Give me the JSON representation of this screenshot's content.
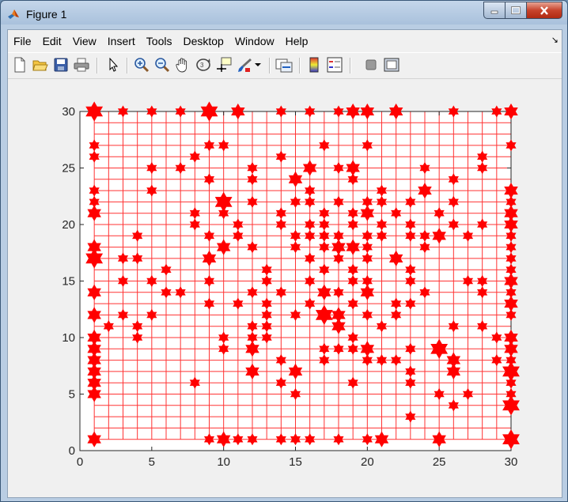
{
  "window": {
    "title": "Figure 1"
  },
  "menu": [
    "File",
    "Edit",
    "View",
    "Insert",
    "Tools",
    "Desktop",
    "Window",
    "Help"
  ],
  "toolbar": [
    "new-figure-icon",
    "open-file-icon",
    "save-icon",
    "print-icon",
    "edit-plot-arrow-icon",
    "zoom-in-icon",
    "zoom-out-icon",
    "pan-hand-icon",
    "rotate-3d-icon",
    "data-cursor-icon",
    "brush-icon",
    "link-plot-icon",
    "insert-colorbar-icon",
    "insert-legend-icon",
    "hide-plot-tools-icon",
    "show-plot-tools-icon"
  ],
  "chart_data": {
    "type": "scatter",
    "xlim": [
      0,
      30
    ],
    "ylim": [
      0,
      30
    ],
    "xticks": [
      "0",
      "5",
      "10",
      "15",
      "20",
      "25",
      "30"
    ],
    "yticks": [
      "0",
      "5",
      "10",
      "15",
      "20",
      "25",
      "30"
    ],
    "color": "#ff0000",
    "grid_color": "#ff3333",
    "grid_x": [
      1,
      2,
      3,
      4,
      5,
      6,
      7,
      8,
      9,
      10,
      11,
      12,
      13,
      14,
      15,
      16,
      17,
      18,
      19,
      20,
      21,
      22,
      23,
      24,
      25,
      26,
      27,
      28,
      29,
      30
    ],
    "grid_y": [
      1,
      2,
      3,
      4,
      5,
      6,
      7,
      8,
      9,
      10,
      11,
      12,
      13,
      14,
      15,
      16,
      17,
      18,
      19,
      20,
      21,
      22,
      23,
      24,
      25,
      26,
      27,
      28,
      29,
      30
    ],
    "marker": "hexagram",
    "points": [
      [
        1,
        30,
        3
      ],
      [
        3,
        30,
        1
      ],
      [
        5,
        30,
        1
      ],
      [
        7,
        30,
        1
      ],
      [
        9,
        30,
        3
      ],
      [
        11,
        30,
        2
      ],
      [
        14,
        30,
        1
      ],
      [
        16,
        30,
        1
      ],
      [
        18,
        30,
        1
      ],
      [
        19,
        30,
        2
      ],
      [
        20,
        30,
        2
      ],
      [
        22,
        30,
        2
      ],
      [
        26,
        30,
        1
      ],
      [
        29,
        30,
        1
      ],
      [
        30,
        30,
        2
      ],
      [
        1,
        27,
        1
      ],
      [
        9,
        27,
        1
      ],
      [
        10,
        27,
        1
      ],
      [
        17,
        27,
        1
      ],
      [
        20,
        27,
        1
      ],
      [
        30,
        27,
        1
      ],
      [
        1,
        26,
        1
      ],
      [
        8,
        26,
        1
      ],
      [
        14,
        26,
        1
      ],
      [
        28,
        26,
        1
      ],
      [
        5,
        25,
        1
      ],
      [
        7,
        25,
        1
      ],
      [
        12,
        25,
        1
      ],
      [
        16,
        25,
        2
      ],
      [
        18,
        25,
        1
      ],
      [
        19,
        25,
        2
      ],
      [
        24,
        25,
        1
      ],
      [
        28,
        25,
        1
      ],
      [
        9,
        24,
        1
      ],
      [
        12,
        24,
        1
      ],
      [
        15,
        24,
        2
      ],
      [
        19,
        24,
        1
      ],
      [
        26,
        24,
        1
      ],
      [
        1,
        23,
        1
      ],
      [
        5,
        23,
        1
      ],
      [
        16,
        23,
        1
      ],
      [
        21,
        23,
        1
      ],
      [
        24,
        23,
        2
      ],
      [
        30,
        23,
        2
      ],
      [
        1,
        22,
        1
      ],
      [
        10,
        22,
        3
      ],
      [
        12,
        22,
        1
      ],
      [
        15,
        22,
        1
      ],
      [
        16,
        22,
        1
      ],
      [
        18,
        22,
        1
      ],
      [
        20,
        22,
        1
      ],
      [
        21,
        22,
        1
      ],
      [
        23,
        22,
        1
      ],
      [
        26,
        22,
        1
      ],
      [
        30,
        22,
        1
      ],
      [
        1,
        21,
        2
      ],
      [
        8,
        21,
        1
      ],
      [
        10,
        21,
        1
      ],
      [
        14,
        21,
        1
      ],
      [
        17,
        21,
        1
      ],
      [
        19,
        21,
        1
      ],
      [
        20,
        21,
        2
      ],
      [
        22,
        21,
        1
      ],
      [
        25,
        21,
        1
      ],
      [
        30,
        21,
        2
      ],
      [
        8,
        20,
        1
      ],
      [
        11,
        20,
        1
      ],
      [
        14,
        20,
        1
      ],
      [
        16,
        20,
        1
      ],
      [
        17,
        20,
        1
      ],
      [
        19,
        20,
        1
      ],
      [
        21,
        20,
        1
      ],
      [
        23,
        20,
        1
      ],
      [
        26,
        20,
        1
      ],
      [
        28,
        20,
        1
      ],
      [
        30,
        20,
        2
      ],
      [
        4,
        19,
        1
      ],
      [
        9,
        19,
        1
      ],
      [
        11,
        19,
        1
      ],
      [
        15,
        19,
        1
      ],
      [
        16,
        19,
        1
      ],
      [
        17,
        19,
        1
      ],
      [
        18,
        19,
        1
      ],
      [
        20,
        19,
        1
      ],
      [
        21,
        19,
        1
      ],
      [
        23,
        19,
        1
      ],
      [
        24,
        19,
        1
      ],
      [
        25,
        19,
        2
      ],
      [
        27,
        19,
        1
      ],
      [
        30,
        19,
        1
      ],
      [
        1,
        18,
        2
      ],
      [
        10,
        18,
        2
      ],
      [
        12,
        18,
        1
      ],
      [
        15,
        18,
        1
      ],
      [
        17,
        18,
        1
      ],
      [
        18,
        18,
        2
      ],
      [
        19,
        18,
        2
      ],
      [
        20,
        18,
        1
      ],
      [
        24,
        18,
        1
      ],
      [
        30,
        18,
        1
      ],
      [
        1,
        17,
        3
      ],
      [
        3,
        17,
        1
      ],
      [
        4,
        17,
        1
      ],
      [
        9,
        17,
        2
      ],
      [
        16,
        17,
        1
      ],
      [
        18,
        17,
        1
      ],
      [
        20,
        17,
        1
      ],
      [
        22,
        17,
        2
      ],
      [
        30,
        17,
        1
      ],
      [
        6,
        16,
        1
      ],
      [
        13,
        16,
        1
      ],
      [
        17,
        16,
        1
      ],
      [
        19,
        16,
        1
      ],
      [
        23,
        16,
        1
      ],
      [
        30,
        16,
        1
      ],
      [
        3,
        15,
        1
      ],
      [
        5,
        15,
        1
      ],
      [
        9,
        15,
        1
      ],
      [
        13,
        15,
        1
      ],
      [
        16,
        15,
        1
      ],
      [
        19,
        15,
        1
      ],
      [
        20,
        15,
        1
      ],
      [
        23,
        15,
        1
      ],
      [
        27,
        15,
        1
      ],
      [
        28,
        15,
        1
      ],
      [
        30,
        15,
        2
      ],
      [
        1,
        14,
        2
      ],
      [
        6,
        14,
        1
      ],
      [
        7,
        14,
        1
      ],
      [
        12,
        14,
        1
      ],
      [
        14,
        14,
        1
      ],
      [
        17,
        14,
        2
      ],
      [
        18,
        14,
        1
      ],
      [
        20,
        14,
        2
      ],
      [
        24,
        14,
        1
      ],
      [
        28,
        14,
        1
      ],
      [
        30,
        14,
        1
      ],
      [
        9,
        13,
        1
      ],
      [
        11,
        13,
        1
      ],
      [
        13,
        13,
        1
      ],
      [
        16,
        13,
        1
      ],
      [
        19,
        13,
        1
      ],
      [
        22,
        13,
        1
      ],
      [
        23,
        13,
        1
      ],
      [
        30,
        13,
        2
      ],
      [
        1,
        12,
        2
      ],
      [
        3,
        12,
        1
      ],
      [
        5,
        12,
        1
      ],
      [
        13,
        12,
        1
      ],
      [
        15,
        12,
        1
      ],
      [
        17,
        12,
        3
      ],
      [
        18,
        12,
        2
      ],
      [
        20,
        12,
        1
      ],
      [
        22,
        12,
        1
      ],
      [
        30,
        12,
        1
      ],
      [
        2,
        11,
        1
      ],
      [
        4,
        11,
        1
      ],
      [
        12,
        11,
        1
      ],
      [
        13,
        11,
        1
      ],
      [
        18,
        11,
        2
      ],
      [
        21,
        11,
        1
      ],
      [
        26,
        11,
        1
      ],
      [
        28,
        11,
        1
      ],
      [
        1,
        10,
        2
      ],
      [
        4,
        10,
        1
      ],
      [
        10,
        10,
        1
      ],
      [
        12,
        10,
        1
      ],
      [
        13,
        10,
        1
      ],
      [
        19,
        10,
        1
      ],
      [
        29,
        10,
        1
      ],
      [
        30,
        10,
        2
      ],
      [
        1,
        9,
        2
      ],
      [
        10,
        9,
        1
      ],
      [
        12,
        9,
        2
      ],
      [
        17,
        9,
        1
      ],
      [
        18,
        9,
        1
      ],
      [
        19,
        9,
        1
      ],
      [
        20,
        9,
        2
      ],
      [
        23,
        9,
        1
      ],
      [
        25,
        9,
        3
      ],
      [
        30,
        9,
        2
      ],
      [
        1,
        8,
        2
      ],
      [
        14,
        8,
        1
      ],
      [
        17,
        8,
        1
      ],
      [
        20,
        8,
        1
      ],
      [
        21,
        8,
        1
      ],
      [
        22,
        8,
        1
      ],
      [
        26,
        8,
        2
      ],
      [
        29,
        8,
        1
      ],
      [
        30,
        8,
        1
      ],
      [
        1,
        7,
        2
      ],
      [
        12,
        7,
        2
      ],
      [
        15,
        7,
        2
      ],
      [
        23,
        7,
        1
      ],
      [
        26,
        7,
        2
      ],
      [
        30,
        7,
        3
      ],
      [
        1,
        6,
        2
      ],
      [
        8,
        6,
        1
      ],
      [
        14,
        6,
        1
      ],
      [
        19,
        6,
        1
      ],
      [
        23,
        6,
        1
      ],
      [
        30,
        6,
        1
      ],
      [
        1,
        5,
        2
      ],
      [
        15,
        5,
        1
      ],
      [
        25,
        5,
        1
      ],
      [
        27,
        5,
        1
      ],
      [
        30,
        5,
        1
      ],
      [
        26,
        4,
        1
      ],
      [
        30,
        4,
        3
      ],
      [
        23,
        3,
        1
      ],
      [
        1,
        1,
        2
      ],
      [
        9,
        1,
        1
      ],
      [
        10,
        1,
        2
      ],
      [
        11,
        1,
        1
      ],
      [
        12,
        1,
        1
      ],
      [
        14,
        1,
        1
      ],
      [
        15,
        1,
        1
      ],
      [
        16,
        1,
        1
      ],
      [
        18,
        1,
        1
      ],
      [
        20,
        1,
        1
      ],
      [
        21,
        1,
        2
      ],
      [
        25,
        1,
        2
      ],
      [
        30,
        1,
        3
      ]
    ]
  }
}
